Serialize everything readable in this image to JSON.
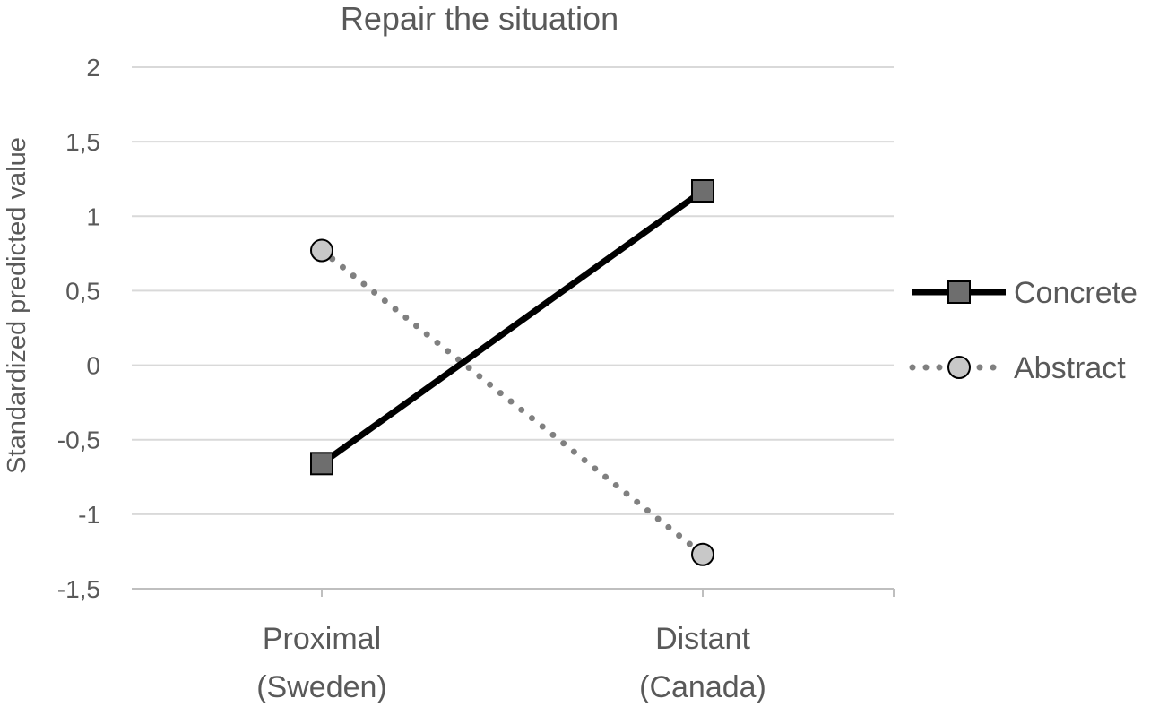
{
  "chart_data": {
    "type": "line",
    "title": "Repair the situation",
    "xlabel": "",
    "ylabel": "Standardized predicted value",
    "categories": [
      [
        "Proximal",
        "(Sweden)"
      ],
      [
        "Distant",
        "(Canada)"
      ]
    ],
    "ylim": [
      -1.5,
      2
    ],
    "yticks": [
      -1.5,
      -1,
      -0.5,
      0,
      0.5,
      1,
      1.5,
      2
    ],
    "ytick_labels": [
      "-1,5",
      "-1",
      "-0,5",
      "0",
      "0,5",
      "1",
      "1,5",
      "2"
    ],
    "grid": true,
    "legend_position": "right",
    "series": [
      {
        "name": "Concrete",
        "values": [
          -0.66,
          1.17
        ],
        "line_style": "solid",
        "line_color": "#000000",
        "marker": "square",
        "marker_color": "#6e6e6e"
      },
      {
        "name": "Abstract",
        "values": [
          0.77,
          -1.27
        ],
        "line_style": "dotted",
        "line_color": "#808080",
        "marker": "circle",
        "marker_color": "#c8c8c8"
      }
    ],
    "colors": {
      "text": "#595959",
      "grid": "#d9d9d9"
    }
  }
}
